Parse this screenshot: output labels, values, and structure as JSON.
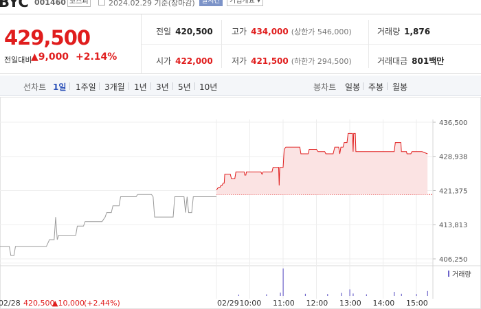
{
  "header": {
    "stock_name": "BYC",
    "stock_code": "001460",
    "market": "코스피",
    "date_text": "2024.02.29  기준(장마감)",
    "realtime_button": "실시간",
    "company_info_button": "기업개요 ▾"
  },
  "price": {
    "current": "429,500",
    "change_label": "전일대비",
    "change_amount": "▲9,000",
    "change_rate": "+2.14%",
    "prev_close_label": "전일",
    "prev_close": "420,500",
    "open_label": "시가",
    "open": "422,000",
    "high_label": "고가",
    "high": "434,000",
    "upper_limit": "(상한가 546,000)",
    "low_label": "저가",
    "low": "421,500",
    "lower_limit": "(하한가 294,500)",
    "volume_label": "거래량",
    "volume": "1,876",
    "trade_value_label": "거래대금",
    "trade_value": "801",
    "trade_value_unit": "백만"
  },
  "tabs": {
    "line_label": "선차트",
    "line_items": [
      "1일",
      "1주일",
      "3개월",
      "1년",
      "3년",
      "5년",
      "10년"
    ],
    "line_active": "1일",
    "candle_label": "봉차트",
    "candle_items": [
      "일봉",
      "주봉",
      "월봉"
    ]
  },
  "colors": {
    "up": "#e01d1d",
    "down": "#1f5bd6",
    "accent": "#2b50b8",
    "prev_day_line": "#9a9a9a"
  },
  "chart_data": {
    "type": "line",
    "y_ticks": [
      "436,500",
      "428,938",
      "421,375",
      "413,813",
      "406,250"
    ],
    "ylim": [
      406250,
      436500
    ],
    "reference_price": 420500,
    "x_ticks": [
      "02/29",
      "10:00",
      "11:00",
      "12:00",
      "13:00",
      "14:00",
      "15:00"
    ],
    "volume_legend": "거래량",
    "prev_day_caption": "02/28",
    "prev_day_price": "420,500",
    "prev_day_change": "▲10,000",
    "prev_day_rate": "(+2.44%)",
    "prev_day_series": {
      "name": "02/28",
      "values": [
        [
          0.0,
          409000
        ],
        [
          0.03,
          409000
        ],
        [
          0.035,
          407000
        ],
        [
          0.045,
          407000
        ],
        [
          0.05,
          409000
        ],
        [
          0.15,
          409000
        ],
        [
          0.16,
          410500
        ],
        [
          0.175,
          410500
        ],
        [
          0.18,
          415500
        ],
        [
          0.185,
          410500
        ],
        [
          0.19,
          411500
        ],
        [
          0.245,
          411500
        ],
        [
          0.25,
          413500
        ],
        [
          0.27,
          413500
        ],
        [
          0.275,
          414500
        ],
        [
          0.33,
          414500
        ],
        [
          0.34,
          415500
        ],
        [
          0.345,
          416500
        ],
        [
          0.36,
          416500
        ],
        [
          0.365,
          418000
        ],
        [
          0.385,
          418000
        ],
        [
          0.39,
          420000
        ],
        [
          0.44,
          420000
        ],
        [
          0.445,
          420500
        ],
        [
          0.49,
          420500
        ],
        [
          0.495,
          420000
        ],
        [
          0.5,
          415500
        ],
        [
          0.56,
          415500
        ],
        [
          0.565,
          420000
        ],
        [
          0.595,
          420000
        ],
        [
          0.6,
          416500
        ],
        [
          0.605,
          420000
        ],
        [
          0.61,
          416500
        ],
        [
          0.62,
          416500
        ],
        [
          0.625,
          420000
        ],
        [
          0.7,
          420000
        ]
      ]
    },
    "series": [
      {
        "name": "02/29",
        "values": [
          [
            "09:00",
            421500
          ],
          [
            "09:03",
            422000
          ],
          [
            "09:06",
            422000
          ],
          [
            "09:08",
            422500
          ],
          [
            "09:10",
            422500
          ],
          [
            "09:12",
            423000
          ],
          [
            "09:14",
            423000
          ],
          [
            "09:15",
            425000
          ],
          [
            "09:25",
            425000
          ],
          [
            "09:27",
            424000
          ],
          [
            "09:33",
            424000
          ],
          [
            "09:35",
            425500
          ],
          [
            "09:50",
            425500
          ],
          [
            "09:51",
            424800
          ],
          [
            "09:53",
            424800
          ],
          [
            "09:54",
            425500
          ],
          [
            "10:20",
            425500
          ],
          [
            "10:22",
            425000
          ],
          [
            "10:24",
            425500
          ],
          [
            "10:40",
            425500
          ],
          [
            "10:42",
            426500
          ],
          [
            "10:52",
            426500
          ],
          [
            "10:53",
            422500
          ],
          [
            "10:54",
            426500
          ],
          [
            "11:00",
            426500
          ],
          [
            "11:02",
            430500
          ],
          [
            "11:05",
            431000
          ],
          [
            "11:30",
            431000
          ],
          [
            "11:32",
            429500
          ],
          [
            "11:45",
            429500
          ],
          [
            "11:47",
            430500
          ],
          [
            "12:00",
            430500
          ],
          [
            "12:03",
            430000
          ],
          [
            "12:15",
            430000
          ],
          [
            "12:17",
            429500
          ],
          [
            "12:30",
            429500
          ],
          [
            "12:33",
            431000
          ],
          [
            "12:40",
            431000
          ],
          [
            "12:42",
            429500
          ],
          [
            "12:44",
            431000
          ],
          [
            "12:48",
            431000
          ],
          [
            "12:50",
            432000
          ],
          [
            "12:55",
            432000
          ],
          [
            "12:57",
            434000
          ],
          [
            "13:05",
            434000
          ],
          [
            "13:06",
            430000
          ],
          [
            "13:07",
            434000
          ],
          [
            "13:10",
            434000
          ],
          [
            "13:11",
            430000
          ],
          [
            "13:20",
            430000
          ],
          [
            "13:25",
            430000
          ],
          [
            "13:50",
            430000
          ],
          [
            "14:20",
            430000
          ],
          [
            "14:22",
            432000
          ],
          [
            "14:32",
            432000
          ],
          [
            "14:33",
            430000
          ],
          [
            "14:42",
            430000
          ],
          [
            "14:43",
            429500
          ],
          [
            "14:50",
            429500
          ],
          [
            "14:52",
            430000
          ],
          [
            "15:10",
            430000
          ],
          [
            "15:20",
            429500
          ]
        ]
      }
    ],
    "volume_bars": [
      [
        "11:00",
        10.0
      ],
      [
        "09:40",
        0.5
      ],
      [
        "10:30",
        0.6
      ],
      [
        "10:55",
        1.2
      ],
      [
        "11:40",
        0.8
      ],
      [
        "12:20",
        0.7
      ],
      [
        "12:45",
        1.1
      ],
      [
        "13:00",
        2.4
      ],
      [
        "13:06",
        0.9
      ],
      [
        "13:30",
        0.6
      ],
      [
        "14:20",
        1.5
      ],
      [
        "14:33",
        0.8
      ],
      [
        "15:00",
        0.7
      ],
      [
        "15:20",
        1.8
      ]
    ]
  }
}
